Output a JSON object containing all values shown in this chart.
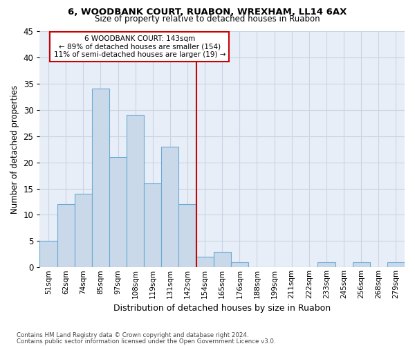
{
  "title": "6, WOODBANK COURT, RUABON, WREXHAM, LL14 6AX",
  "subtitle": "Size of property relative to detached houses in Ruabon",
  "xlabel": "Distribution of detached houses by size in Ruabon",
  "ylabel": "Number of detached properties",
  "bar_labels": [
    "51sqm",
    "62sqm",
    "74sqm",
    "85sqm",
    "97sqm",
    "108sqm",
    "119sqm",
    "131sqm",
    "142sqm",
    "154sqm",
    "165sqm",
    "176sqm",
    "188sqm",
    "199sqm",
    "211sqm",
    "222sqm",
    "233sqm",
    "245sqm",
    "256sqm",
    "268sqm",
    "279sqm"
  ],
  "bar_values": [
    5,
    12,
    14,
    34,
    21,
    29,
    16,
    23,
    12,
    2,
    3,
    1,
    0,
    0,
    0,
    0,
    1,
    0,
    1,
    0,
    1
  ],
  "bar_color": "#c9d9ea",
  "bar_edge_color": "#6aaad4",
  "vline_color": "#cc0000",
  "annotation_title": "6 WOODBANK COURT: 143sqm",
  "annotation_line1": "← 89% of detached houses are smaller (154)",
  "annotation_line2": "11% of semi-detached houses are larger (19) →",
  "annotation_box_color": "#cc0000",
  "ylim": [
    0,
    45
  ],
  "yticks": [
    0,
    5,
    10,
    15,
    20,
    25,
    30,
    35,
    40,
    45
  ],
  "grid_color": "#c8d4e4",
  "bg_color": "#e8eef8",
  "footer1": "Contains HM Land Registry data © Crown copyright and database right 2024.",
  "footer2": "Contains public sector information licensed under the Open Government Licence v3.0."
}
